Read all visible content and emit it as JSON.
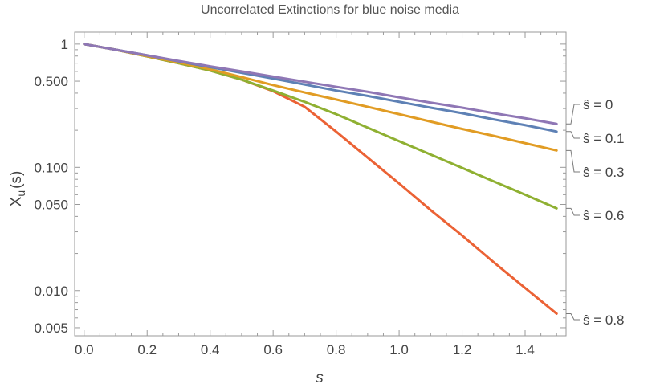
{
  "chart_data": {
    "type": "line",
    "title": "Uncorrelated Extinctions for blue noise media",
    "xlabel": "s",
    "ylabel": "X_u(s)",
    "ylabel_main": "X",
    "ylabel_sub": "u",
    "ylabel_arg": "(s)",
    "yscale": "log",
    "xlim": [
      -0.03,
      1.53
    ],
    "ylim": [
      0.0043,
      1.25
    ],
    "x_ticks": [
      0.0,
      0.2,
      0.4,
      0.6,
      0.8,
      1.0,
      1.2,
      1.4
    ],
    "x_tick_labels": [
      "0.0",
      "0.2",
      "0.4",
      "0.6",
      "0.8",
      "1.0",
      "1.2",
      "1.4"
    ],
    "y_ticks": [
      1,
      0.5,
      0.1,
      0.05,
      0.01,
      0.005
    ],
    "y_tick_labels": [
      "1",
      "0.500",
      "0.100",
      "0.050",
      "0.010",
      "0.005"
    ],
    "grid": false,
    "legend_position": "right",
    "series": [
      {
        "name": "ŝ = 0",
        "color": "#8f77b5",
        "x": [
          0,
          0.1,
          0.2,
          0.3,
          0.4,
          0.5,
          0.6,
          0.7,
          0.8,
          0.9,
          1.0,
          1.1,
          1.2,
          1.3,
          1.4,
          1.5
        ],
        "y": [
          1.0,
          0.9,
          0.81,
          0.73,
          0.66,
          0.6,
          0.545,
          0.495,
          0.45,
          0.41,
          0.37,
          0.335,
          0.305,
          0.275,
          0.25,
          0.225
        ]
      },
      {
        "name": "ŝ = 0.1",
        "color": "#5e81b5",
        "x": [
          0,
          0.1,
          0.2,
          0.3,
          0.4,
          0.5,
          0.6,
          0.7,
          0.8,
          0.9,
          1.0,
          1.1,
          1.2,
          1.3,
          1.4,
          1.5
        ],
        "y": [
          1.0,
          0.9,
          0.81,
          0.725,
          0.65,
          0.585,
          0.525,
          0.47,
          0.42,
          0.38,
          0.34,
          0.305,
          0.275,
          0.245,
          0.22,
          0.195
        ]
      },
      {
        "name": "ŝ = 0.3",
        "color": "#e19c24",
        "x": [
          0,
          0.1,
          0.2,
          0.3,
          0.4,
          0.5,
          0.6,
          0.7,
          0.8,
          0.9,
          1.0,
          1.1,
          1.2,
          1.3,
          1.4,
          1.5
        ],
        "y": [
          1.0,
          0.9,
          0.8,
          0.71,
          0.625,
          0.54,
          0.465,
          0.405,
          0.355,
          0.31,
          0.27,
          0.235,
          0.205,
          0.18,
          0.157,
          0.137
        ]
      },
      {
        "name": "ŝ = 0.6",
        "color": "#8fb032",
        "x": [
          0,
          0.1,
          0.2,
          0.3,
          0.4,
          0.5,
          0.6,
          0.7,
          0.8,
          0.9,
          1.0,
          1.1,
          1.2,
          1.3,
          1.4,
          1.5
        ],
        "y": [
          1.0,
          0.9,
          0.795,
          0.7,
          0.61,
          0.515,
          0.42,
          0.34,
          0.27,
          0.21,
          0.163,
          0.127,
          0.099,
          0.077,
          0.06,
          0.0465
        ]
      },
      {
        "name": "ŝ = 0.8",
        "color": "#eb6235",
        "x": [
          0,
          0.1,
          0.2,
          0.3,
          0.4,
          0.5,
          0.6,
          0.7,
          0.8,
          0.9,
          1.0,
          1.1,
          1.2,
          1.3,
          1.4,
          1.5
        ],
        "y": [
          1.0,
          0.9,
          0.795,
          0.7,
          0.61,
          0.515,
          0.415,
          0.31,
          0.195,
          0.12,
          0.074,
          0.045,
          0.028,
          0.017,
          0.0105,
          0.0065
        ]
      }
    ]
  }
}
